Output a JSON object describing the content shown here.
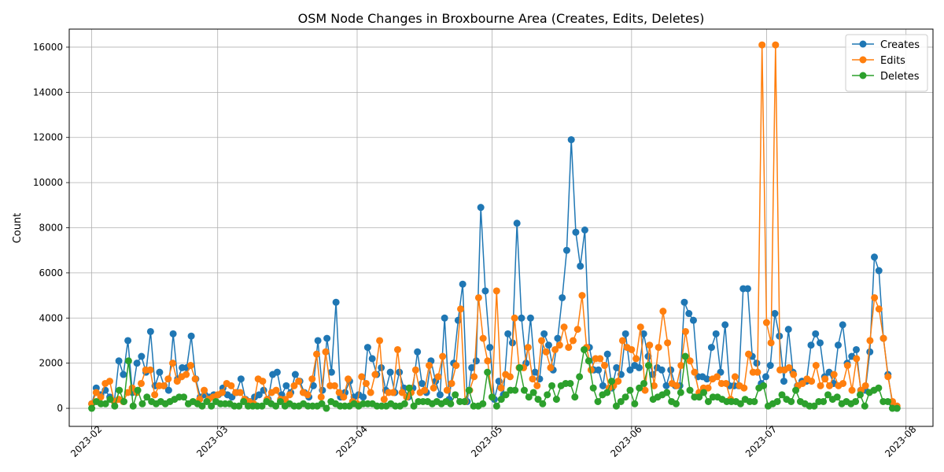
{
  "chart_data": {
    "type": "line",
    "title": "OSM Node Changes in Broxbourne Area (Creates, Edits, Deletes)",
    "xlabel": "",
    "ylabel": "Count",
    "x_ticks": [
      "2023-02",
      "2023-03",
      "2023-04",
      "2023-05",
      "2023-06",
      "2023-07",
      "2023-08"
    ],
    "y_ticks": [
      0,
      2000,
      4000,
      6000,
      8000,
      10000,
      12000,
      14000,
      16000
    ],
    "xlim": [
      "2023-01-27",
      "2023-08-07"
    ],
    "ylim": [
      -800,
      16800
    ],
    "x_start": "2023-02-01",
    "x_end": "2023-07-30",
    "grid": true,
    "legend_position": "top-right",
    "series": [
      {
        "name": "Creates",
        "color": "#1f77b4",
        "values": [
          200,
          900,
          600,
          800,
          500,
          300,
          2100,
          1500,
          3000,
          700,
          2000,
          2300,
          1600,
          3400,
          1000,
          1600,
          1000,
          800,
          3300,
          1300,
          1800,
          1800,
          3200,
          1300,
          500,
          600,
          500,
          600,
          600,
          900,
          600,
          500,
          700,
          1300,
          400,
          300,
          500,
          600,
          800,
          400,
          1500,
          1600,
          600,
          1000,
          700,
          1500,
          1200,
          700,
          500,
          1000,
          3000,
          800,
          3100,
          1600,
          4700,
          500,
          700,
          1200,
          500,
          600,
          500,
          2700,
          2200,
          1500,
          1800,
          800,
          1600,
          700,
          1600,
          900,
          500,
          900,
          2500,
          1100,
          700,
          2100,
          1200,
          600,
          4000,
          400,
          2000,
          3900,
          5500,
          300,
          1800,
          2100,
          8900,
          5200,
          2700,
          400,
          1200,
          600,
          3300,
          2900,
          8200,
          4000,
          2000,
          4000,
          1600,
          1300,
          3300,
          2800,
          1700,
          3100,
          4900,
          7000,
          11900,
          7800,
          6300,
          7900,
          2700,
          1700,
          1700,
          1000,
          2400,
          900,
          1800,
          1500,
          3300,
          1700,
          1900,
          1800,
          3300,
          2300,
          1500,
          1800,
          1700,
          1000,
          1700,
          1000,
          1000,
          4700,
          4200,
          3900,
          1400,
          1400,
          1300,
          2700,
          3300,
          1600,
          3700,
          1000,
          1000,
          1000,
          5300,
          5300,
          2300,
          2000,
          1100,
          1400,
          1900,
          4200,
          3200,
          1200,
          3500,
          1600,
          1000,
          1200,
          1200,
          2800,
          3300,
          2900,
          1400,
          1600,
          1100,
          2800,
          3700,
          2000,
          2300,
          2600,
          800,
          800,
          2500,
          6700,
          6100,
          3100,
          1500,
          200,
          0
        ]
      },
      {
        "name": "Edits",
        "color": "#ff7f0e",
        "values": [
          200,
          700,
          500,
          1100,
          1200,
          300,
          400,
          300,
          700,
          900,
          700,
          1100,
          1700,
          1700,
          600,
          1000,
          1000,
          1300,
          2000,
          1200,
          1400,
          1500,
          1900,
          1300,
          400,
          800,
          400,
          500,
          600,
          700,
          1100,
          1000,
          700,
          700,
          400,
          300,
          200,
          1300,
          1200,
          400,
          700,
          800,
          400,
          400,
          600,
          1000,
          1200,
          700,
          600,
          1300,
          2400,
          500,
          2500,
          1000,
          1000,
          700,
          500,
          1300,
          300,
          200,
          1400,
          1100,
          700,
          1500,
          3000,
          400,
          700,
          700,
          2600,
          700,
          500,
          700,
          1700,
          700,
          800,
          1900,
          900,
          1400,
          2300,
          800,
          1100,
          1900,
          4400,
          300,
          800,
          1400,
          4900,
          3100,
          2100,
          500,
          5200,
          900,
          1500,
          1400,
          4000,
          1800,
          1800,
          2700,
          1300,
          1000,
          3000,
          2500,
          1800,
          2600,
          2800,
          3600,
          2700,
          3000,
          3500,
          5000,
          2700,
          1700,
          2200,
          2200,
          1900,
          900,
          1000,
          1200,
          3000,
          2700,
          2600,
          2200,
          3600,
          800,
          2800,
          1000,
          2700,
          4300,
          2900,
          1100,
          1000,
          1900,
          3400,
          2100,
          1600,
          700,
          900,
          900,
          1300,
          1400,
          1100,
          1100,
          400,
          1400,
          1000,
          900,
          2400,
          1600,
          1600,
          16100,
          3800,
          2900,
          16100,
          1700,
          1700,
          1800,
          1500,
          1000,
          1100,
          1300,
          1200,
          1900,
          1000,
          1300,
          1000,
          1500,
          1000,
          1100,
          1900,
          800,
          2200,
          800,
          1000,
          3000,
          4900,
          4400,
          3100,
          1400,
          300,
          100
        ]
      },
      {
        "name": "Deletes",
        "color": "#2ca02c",
        "values": [
          0,
          300,
          200,
          200,
          400,
          100,
          800,
          300,
          2100,
          100,
          800,
          200,
          500,
          300,
          200,
          300,
          200,
          300,
          400,
          500,
          500,
          200,
          300,
          200,
          100,
          300,
          100,
          300,
          200,
          200,
          200,
          100,
          100,
          300,
          100,
          100,
          100,
          100,
          300,
          200,
          100,
          300,
          100,
          200,
          100,
          100,
          200,
          100,
          100,
          100,
          200,
          0,
          300,
          200,
          100,
          100,
          100,
          200,
          100,
          200,
          200,
          200,
          100,
          100,
          100,
          200,
          100,
          100,
          200,
          900,
          100,
          300,
          300,
          300,
          200,
          300,
          200,
          300,
          200,
          600,
          300,
          300,
          800,
          100,
          100,
          200,
          1600,
          500,
          100,
          400,
          600,
          800,
          800,
          1800,
          800,
          500,
          700,
          400,
          200,
          600,
          1000,
          400,
          1000,
          1100,
          1100,
          500,
          1400,
          2600,
          2100,
          900,
          300,
          600,
          700,
          1200,
          100,
          300,
          500,
          800,
          200,
          900,
          1100,
          1900,
          400,
          500,
          600,
          700,
          300,
          200,
          700,
          2300,
          800,
          500,
          500,
          700,
          300,
          500,
          500,
          400,
          300,
          300,
          300,
          200,
          400,
          300,
          300,
          900,
          1000,
          100,
          200,
          300,
          600,
          400,
          300,
          800,
          300,
          200,
          100,
          100,
          300,
          300,
          600,
          400,
          500,
          200,
          300,
          200,
          300,
          600,
          100,
          700,
          800,
          900,
          300,
          300,
          0,
          0
        ]
      }
    ]
  }
}
